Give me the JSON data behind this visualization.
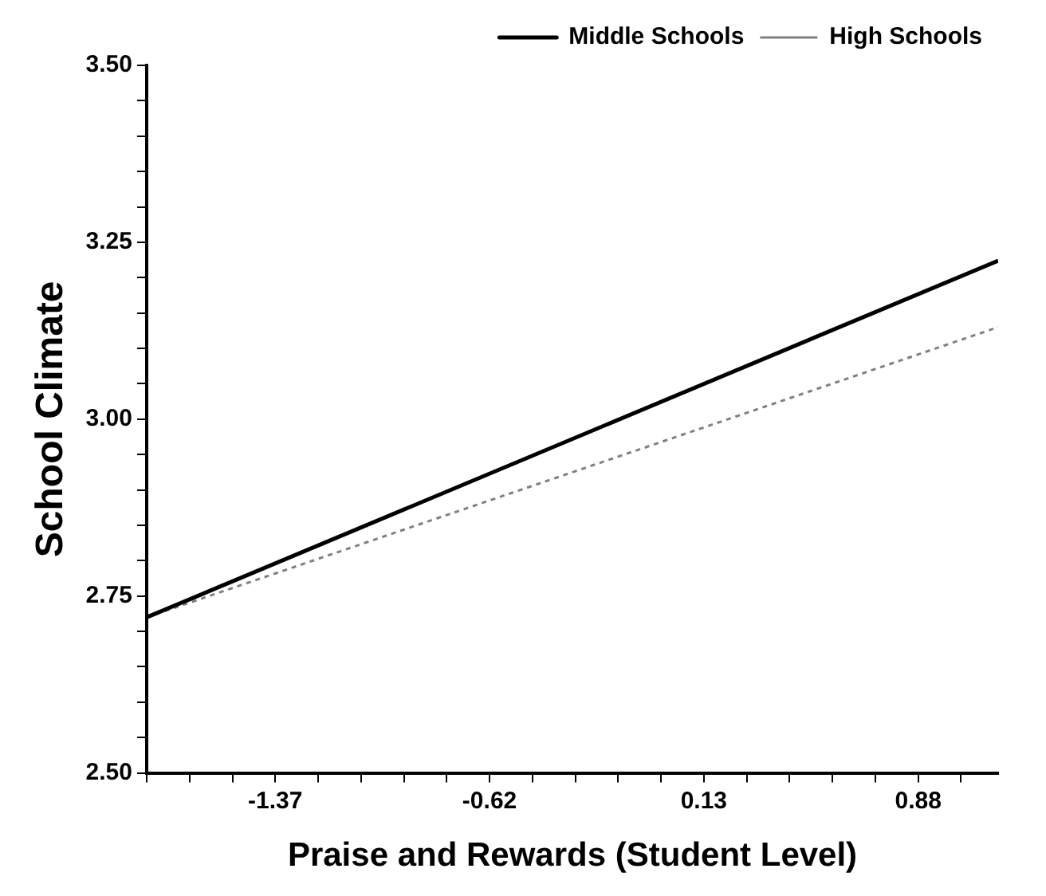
{
  "chart_data": {
    "type": "line",
    "xlabel": "Praise and Rewards (Student Level)",
    "ylabel": "School Climate",
    "x": [
      -1.82,
      1.16
    ],
    "series": [
      {
        "name": "Middle Schools",
        "color": "#000000",
        "values": [
          2.72,
          3.224
        ],
        "line_style": "solid"
      },
      {
        "name": "High Schools",
        "color": "#808080",
        "values": [
          2.72,
          3.13
        ],
        "line_style": "dotted"
      }
    ],
    "xlim": [
      -1.82,
      1.16
    ],
    "xticks": [
      {
        "value": -1.82,
        "label": null
      },
      {
        "value": -1.67,
        "label": null
      },
      {
        "value": -1.52,
        "label": null
      },
      "-1.37",
      {
        "value": -1.22,
        "label": null
      },
      {
        "value": -1.07,
        "label": null
      },
      {
        "value": -0.92,
        "label": null
      },
      {
        "value": -0.77,
        "label": null
      },
      -0.62,
      {
        "value": -0.47,
        "label": null
      },
      {
        "value": -0.32,
        "label": null
      },
      {
        "value": -0.17,
        "label": null
      },
      {
        "value": -0.02,
        "label": null
      },
      0.13,
      {
        "value": 0.28,
        "label": null
      },
      {
        "value": 0.43,
        "label": null
      },
      {
        "value": 0.58,
        "label": null
      },
      {
        "value": 0.73,
        "label": null
      },
      0.88,
      {
        "value": 1.03,
        "label": null
      }
    ],
    "ylim": [
      2.5,
      3.5
    ],
    "yticks": [
      {
        "value": 2.5,
        "label": "2.50"
      },
      {
        "value": 2.55,
        "label": null
      },
      {
        "value": 2.6,
        "label": null
      },
      {
        "value": 2.65,
        "label": null
      },
      {
        "value": 2.7,
        "label": null
      },
      2.75,
      {
        "value": 2.8,
        "label": null
      },
      {
        "value": 2.85,
        "label": null
      },
      {
        "value": 2.9,
        "label": null
      },
      {
        "value": 2.95,
        "label": null
      },
      {
        "value": 3.0,
        "label": "3.00"
      },
      {
        "value": 3.05,
        "label": null
      },
      {
        "value": 3.1,
        "label": null
      },
      {
        "value": 3.15,
        "label": null
      },
      {
        "value": 3.2,
        "label": null
      },
      3.25,
      {
        "value": 3.3,
        "label": null
      },
      {
        "value": 3.35,
        "label": null
      },
      {
        "value": 3.4,
        "label": null
      },
      {
        "value": 3.45,
        "label": null
      },
      {
        "value": 3.5,
        "label": "3.50"
      }
    ],
    "grid": false,
    "legend": "top right",
    "marker": "none"
  }
}
